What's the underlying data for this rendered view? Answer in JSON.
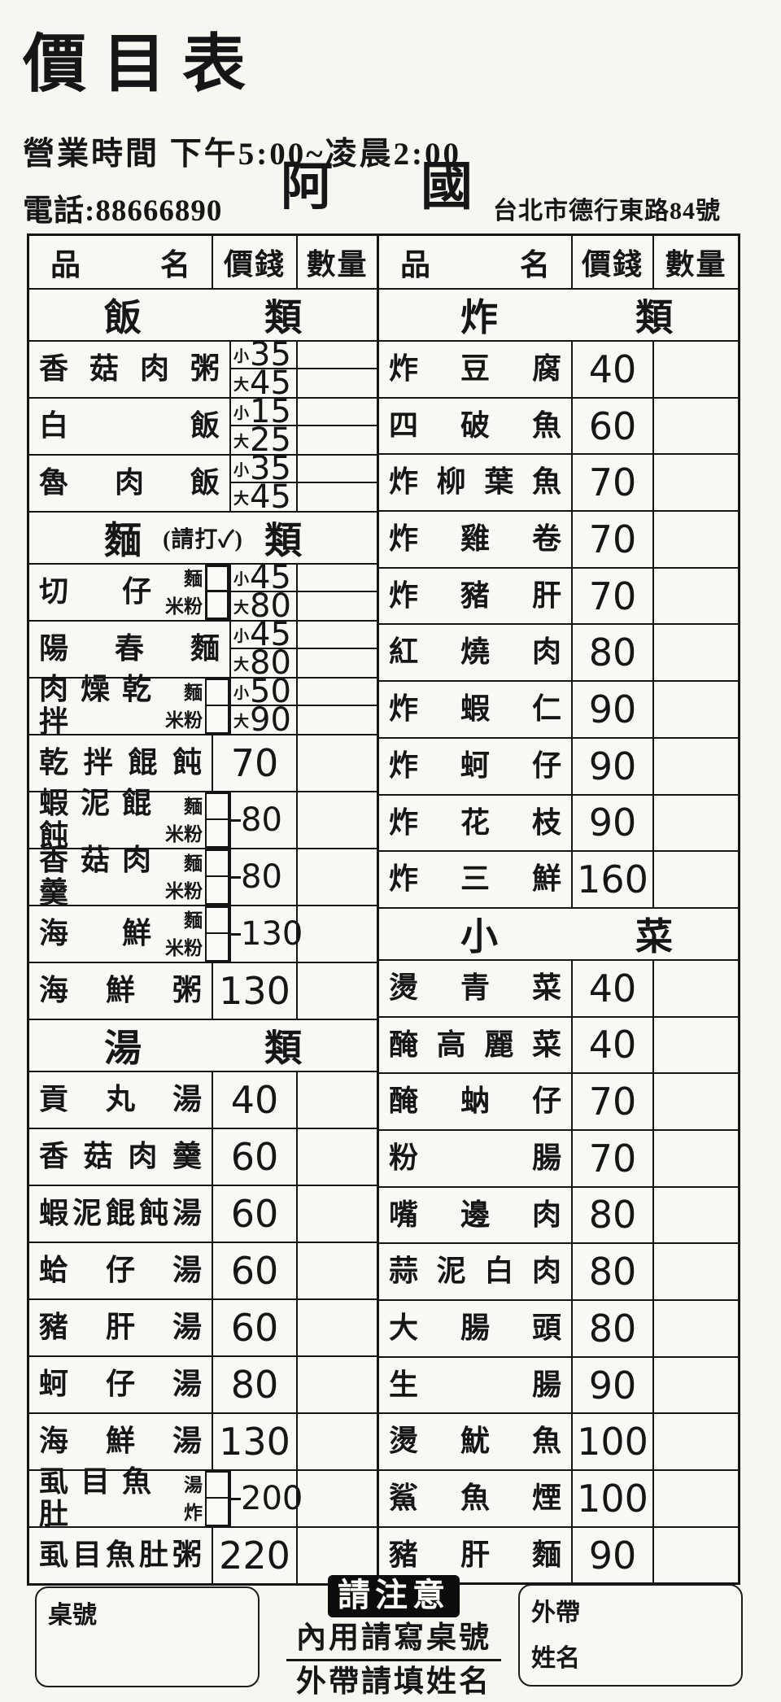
{
  "header": {
    "title": "價目表",
    "hours": "營業時間 下午5:00~凌晨2:00",
    "phone": "電話:88666890",
    "name": "阿國",
    "name_chars": [
      "阿",
      "國"
    ],
    "address": "台北市德行東路84號"
  },
  "table_headers": {
    "item_chars": [
      "品",
      "名"
    ],
    "price": "價錢",
    "qty": "數量"
  },
  "size_prefixes": {
    "small": "小",
    "large": "大"
  },
  "left_sections": [
    {
      "band": [
        "飯",
        "類"
      ],
      "rows": [
        {
          "type": "sizes",
          "name": "香菇肉粥",
          "small": "35",
          "large": "45"
        },
        {
          "type": "sizes",
          "name": "白飯",
          "small": "15",
          "large": "25"
        },
        {
          "type": "sizes",
          "name": "魯肉飯",
          "small": "35",
          "large": "45"
        }
      ]
    },
    {
      "band": [
        "麵",
        "(請打✓)",
        "類"
      ],
      "rows": [
        {
          "type": "variant_sizes",
          "name": "切仔",
          "labels": [
            "麵",
            "米粉"
          ],
          "small": "45",
          "large": "80",
          "bold_box": true
        },
        {
          "type": "sizes",
          "name": "陽春麵",
          "small": "45",
          "large": "80"
        },
        {
          "type": "variant_sizes",
          "name": "肉燥乾拌",
          "labels": [
            "麵",
            "米粉"
          ],
          "small": "50",
          "large": "90"
        },
        {
          "type": "plain",
          "name": "乾拌餛飩",
          "price": "70"
        },
        {
          "type": "variant",
          "name": "蝦泥餛飩",
          "labels": [
            "麵",
            "米粉"
          ],
          "price": "80"
        },
        {
          "type": "variant",
          "name": "香菇肉羹",
          "labels": [
            "麵",
            "米粉"
          ],
          "price": "80"
        },
        {
          "type": "variant",
          "name": "海鮮",
          "labels": [
            "麵",
            "米粉"
          ],
          "price": "130"
        },
        {
          "type": "plain",
          "name": "海鮮粥",
          "price": "130"
        }
      ]
    },
    {
      "band": [
        "湯",
        "類"
      ],
      "rows": [
        {
          "type": "plain",
          "name": "貢丸湯",
          "price": "40"
        },
        {
          "type": "plain",
          "name": "香菇肉羹",
          "price": "60"
        },
        {
          "type": "plain",
          "name": "蝦泥餛飩湯",
          "price": "60"
        },
        {
          "type": "plain",
          "name": "蛤仔湯",
          "price": "60"
        },
        {
          "type": "plain",
          "name": "豬肝湯",
          "price": "60"
        },
        {
          "type": "plain",
          "name": "蚵仔湯",
          "price": "80"
        },
        {
          "type": "plain",
          "name": "海鮮湯",
          "price": "130"
        },
        {
          "type": "variant",
          "name": "虱目魚肚",
          "labels": [
            "湯",
            "炸"
          ],
          "price": "200"
        },
        {
          "type": "plain",
          "name": "虱目魚肚粥",
          "price": "220"
        }
      ]
    }
  ],
  "right_sections": [
    {
      "band": [
        "炸",
        "類"
      ],
      "rows": [
        {
          "type": "plain",
          "name": "炸豆腐",
          "price": "40"
        },
        {
          "type": "plain",
          "name": "四破魚",
          "price": "60"
        },
        {
          "type": "plain",
          "name": "炸柳葉魚",
          "price": "70"
        },
        {
          "type": "plain",
          "name": "炸雞卷",
          "price": "70"
        },
        {
          "type": "plain",
          "name": "炸豬肝",
          "price": "70"
        },
        {
          "type": "plain",
          "name": "紅燒肉",
          "price": "80"
        },
        {
          "type": "plain",
          "name": "炸蝦仁",
          "price": "90"
        },
        {
          "type": "plain",
          "name": "炸蚵仔",
          "price": "90"
        },
        {
          "type": "plain",
          "name": "炸花枝",
          "price": "90"
        },
        {
          "type": "plain",
          "name": "炸三鮮",
          "price": "160"
        }
      ]
    },
    {
      "band": [
        "小",
        "菜"
      ],
      "rows": [
        {
          "type": "plain",
          "name": "燙青菜",
          "price": "40"
        },
        {
          "type": "plain",
          "name": "醃高麗菜",
          "price": "40"
        },
        {
          "type": "plain",
          "name": "醃蚋仔",
          "price": "70"
        },
        {
          "type": "plain",
          "name": "粉腸",
          "price": "70"
        },
        {
          "type": "plain",
          "name": "嘴邊肉",
          "price": "80"
        },
        {
          "type": "plain",
          "name": "蒜泥白肉",
          "price": "80"
        },
        {
          "type": "plain",
          "name": "大腸頭",
          "price": "80"
        },
        {
          "type": "plain",
          "name": "生腸",
          "price": "90"
        },
        {
          "type": "plain",
          "name": "燙魷魚",
          "price": "100"
        },
        {
          "type": "plain",
          "name": "鯊魚煙",
          "price": "100"
        },
        {
          "type": "plain",
          "name": "豬肝麵",
          "price": "90"
        }
      ]
    }
  ],
  "footer": {
    "table_no_label": "桌號",
    "notice_title": "請注意",
    "notice_line1": "內用請寫桌號",
    "notice_line2": "外帶請填姓名",
    "takeout_label": "外帶",
    "name_label": "姓名"
  }
}
